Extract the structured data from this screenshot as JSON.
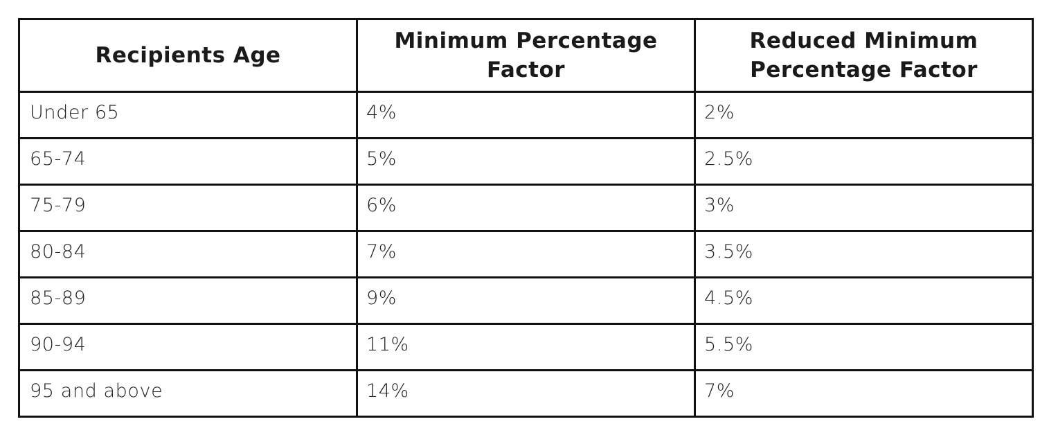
{
  "table": {
    "headers": [
      "Recipients Age",
      "Minimum Percentage Factor",
      "Reduced Minimum Percentage Factor"
    ],
    "rows": [
      [
        "Under 65",
        "4%",
        "2%"
      ],
      [
        "65-74",
        "5%",
        "2.5%"
      ],
      [
        "75-79",
        "6%",
        "3%"
      ],
      [
        "80-84",
        "7%",
        "3.5%"
      ],
      [
        "85-89",
        "9%",
        "4.5%"
      ],
      [
        "90-94",
        "11%",
        "5.5%"
      ],
      [
        "95 and above",
        "14%",
        "7%"
      ]
    ]
  }
}
